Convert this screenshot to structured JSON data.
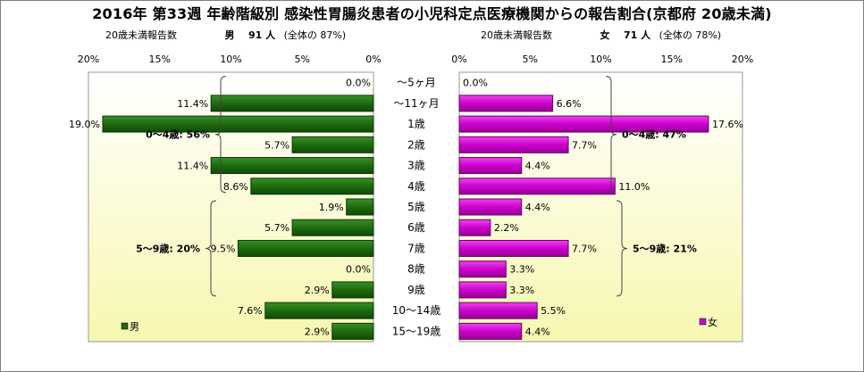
{
  "title": "2016年 第33週 年齢階級別 感染性胃腸炎患者の小児科定点医療機関からの報告割合(京都府 20歳未満)",
  "left_header": {
    "label": "20歳未満報告数",
    "group": "男",
    "count": "91 人",
    "share": "(全体の 87%)"
  },
  "right_header": {
    "label": "20歳未満報告数",
    "group": "女",
    "count": "71 人",
    "share": "(全体の 78%)"
  },
  "chart_data": {
    "type": "bar",
    "orientation": "horizontal",
    "layout": "population-pyramid",
    "title": "2016年 第33週 年齢階級別 感染性胃腸炎患者の小児科定点医療機関からの報告割合(京都府 20歳未満)",
    "categories": [
      "～5ヶ月",
      "～11ヶ月",
      "1歳",
      "2歳",
      "3歳",
      "4歳",
      "5歳",
      "6歳",
      "7歳",
      "8歳",
      "9歳",
      "10～14歳",
      "15～19歳"
    ],
    "xlim": [
      0,
      20
    ],
    "ticks": [
      "20%",
      "15%",
      "10%",
      "5%",
      "0%"
    ],
    "ticks_right": [
      "0%",
      "5%",
      "10%",
      "15%",
      "20%"
    ],
    "series": [
      {
        "name": "男",
        "color": "#1e6b10",
        "values": [
          0.0,
          11.4,
          19.0,
          5.7,
          11.4,
          8.6,
          1.9,
          5.7,
          9.5,
          0.0,
          2.9,
          7.6,
          2.9
        ],
        "labels": [
          "0.0%",
          "11.4%",
          "19.0%",
          "5.7%",
          "11.4%",
          "8.6%",
          "1.9%",
          "5.7%",
          "9.5%",
          "0.0%",
          "2.9%",
          "7.6%",
          "2.9%"
        ]
      },
      {
        "name": "女",
        "color": "#cc00cc",
        "values": [
          0.0,
          6.6,
          17.6,
          7.7,
          4.4,
          11.0,
          4.4,
          2.2,
          7.7,
          3.3,
          3.3,
          5.5,
          4.4
        ],
        "labels": [
          "0.0%",
          "6.6%",
          "17.6%",
          "7.7%",
          "4.4%",
          "11.0%",
          "4.4%",
          "2.2%",
          "7.7%",
          "3.3%",
          "3.3%",
          "5.5%",
          "4.4%"
        ]
      }
    ],
    "brackets": [
      {
        "side": "left",
        "label": "0～4歳: 56%",
        "from": 0,
        "to": 5
      },
      {
        "side": "left",
        "label": "5～9歳: 20%",
        "from": 6,
        "to": 10
      },
      {
        "side": "right",
        "label": "0～4歳: 47%",
        "from": 0,
        "to": 5
      },
      {
        "side": "right",
        "label": "5～9歳: 21%",
        "from": 6,
        "to": 10
      }
    ],
    "legend": [
      {
        "name": "男",
        "position": "bottom-left"
      },
      {
        "name": "女",
        "position": "bottom-right"
      }
    ],
    "background": "light-yellow gradient"
  }
}
